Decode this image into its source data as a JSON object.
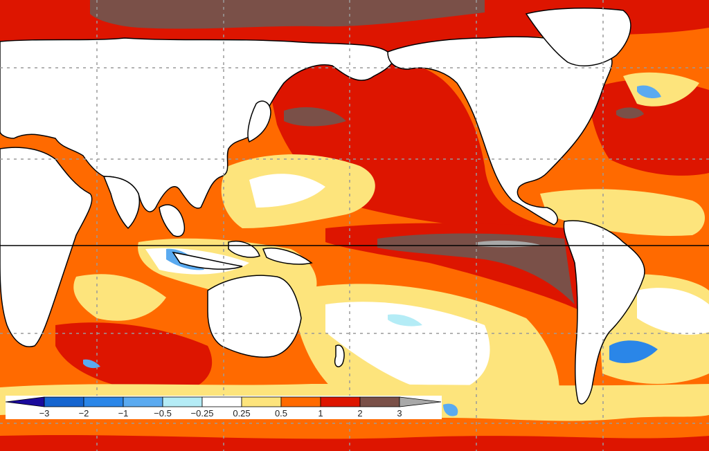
{
  "map": {
    "type": "sea-surface-temperature-anomaly",
    "projection": "equirectangular, Pacific-centered",
    "equator_line": true,
    "gridlines": "dashed gray, 30-degree spacing"
  },
  "colorbar": {
    "labels": [
      "-3",
      "-2",
      "-1",
      "-0.5",
      "-0.25",
      "0.25",
      "0.5",
      "1",
      "2",
      "3"
    ],
    "bins": [
      {
        "range": "< -3",
        "color": "#1a0a9c",
        "shape": "triangle-left"
      },
      {
        "range": "-3 to -2",
        "color": "#1565d0"
      },
      {
        "range": "-2 to -1",
        "color": "#2a86e8"
      },
      {
        "range": "-1 to -0.5",
        "color": "#5aaaf0"
      },
      {
        "range": "-0.5 to -0.25",
        "color": "#b4ecf6"
      },
      {
        "range": "-0.25 to 0.25",
        "color": "#ffffff"
      },
      {
        "range": "0.25 to 0.5",
        "color": "#fde47c"
      },
      {
        "range": "0.5 to 1",
        "color": "#ff6a00"
      },
      {
        "range": "1 to 2",
        "color": "#dd1500"
      },
      {
        "range": "2 to 3",
        "color": "#7a5048"
      },
      {
        "range": "> 3",
        "color": "#a8a8a8",
        "shape": "triangle-right"
      }
    ]
  },
  "colors": {
    "land": "#ffffff",
    "coastline": "#000000",
    "gridline": "#9a9a9a",
    "equator": "#000000"
  }
}
